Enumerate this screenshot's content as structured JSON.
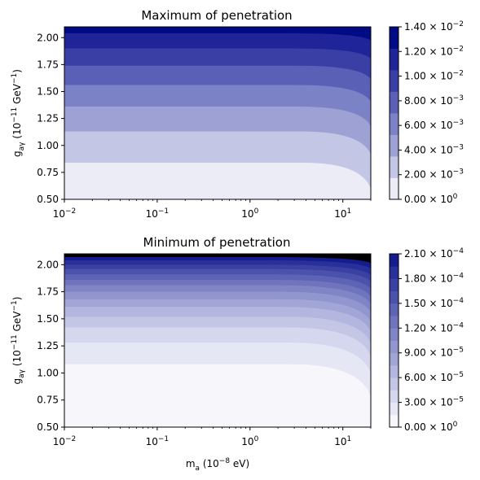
{
  "chart_data": [
    {
      "type": "contour",
      "title": "Maximum of penetration",
      "xlabel": "",
      "ylabel": "g_{aγ} (10^{−11} GeV^{−1})",
      "x_scale": "log",
      "xlim": [
        0.01,
        20
      ],
      "ylim": [
        0.5,
        2.1
      ],
      "x_ticks": [
        {
          "value": 0.01,
          "base": "10",
          "exp": "−2"
        },
        {
          "value": 0.1,
          "base": "10",
          "exp": "−1"
        },
        {
          "value": 1,
          "base": "10",
          "exp": "0"
        },
        {
          "value": 10,
          "base": "10",
          "exp": "1"
        }
      ],
      "y_ticks": [
        "0.50",
        "0.75",
        "1.00",
        "1.25",
        "1.50",
        "1.75",
        "2.00"
      ],
      "level_boundaries_y_at_low_mass": [
        0.84,
        1.13,
        1.36,
        1.56,
        1.74,
        1.9,
        2.04
      ],
      "levels": [
        0,
        0.002,
        0.004,
        0.006,
        0.008,
        0.01,
        0.012,
        0.014
      ],
      "colorbar_ticks": [
        {
          "mant": "0.00",
          "exp": "0"
        },
        {
          "mant": "2.00",
          "exp": "−3"
        },
        {
          "mant": "4.00",
          "exp": "−3"
        },
        {
          "mant": "6.00",
          "exp": "−3"
        },
        {
          "mant": "8.00",
          "exp": "−3"
        },
        {
          "mant": "1.00",
          "exp": "−2"
        },
        {
          "mant": "1.20",
          "exp": "−2"
        },
        {
          "mant": "1.40",
          "exp": "−2"
        }
      ],
      "fill_colors": [
        "#ececf6",
        "#c4c6e6",
        "#9da1d4",
        "#7c82c6",
        "#5a60b6",
        "#3a3fa5",
        "#1f2598",
        "#000b85"
      ]
    },
    {
      "type": "contour",
      "title": "Minimum of penetration",
      "xlabel": "m_a (10^{−8} eV)",
      "ylabel": "g_{aγ} (10^{−11} GeV^{−1})",
      "x_scale": "log",
      "xlim": [
        0.01,
        20
      ],
      "ylim": [
        0.5,
        2.1
      ],
      "x_ticks": [
        {
          "value": 0.01,
          "base": "10",
          "exp": "−2"
        },
        {
          "value": 0.1,
          "base": "10",
          "exp": "−1"
        },
        {
          "value": 1,
          "base": "10",
          "exp": "0"
        },
        {
          "value": 10,
          "base": "10",
          "exp": "1"
        }
      ],
      "y_ticks": [
        "0.50",
        "0.75",
        "1.00",
        "1.25",
        "1.50",
        "1.75",
        "2.00"
      ],
      "level_boundaries_y_at_low_mass": [
        1.08,
        1.28,
        1.42,
        1.52,
        1.61,
        1.68,
        1.75,
        1.81,
        1.86,
        1.91,
        1.96,
        2.0,
        2.04,
        2.07
      ],
      "levels": [
        0,
        1.5e-05,
        3e-05,
        4.5e-05,
        6e-05,
        7.5e-05,
        9e-05,
        0.000105,
        0.00012,
        0.000135,
        0.00015,
        0.000165,
        0.00018,
        0.000195,
        0.00021
      ],
      "colorbar_ticks": [
        {
          "mant": "0.00",
          "exp": "0"
        },
        {
          "mant": "3.00",
          "exp": "−5"
        },
        {
          "mant": "6.00",
          "exp": "−5"
        },
        {
          "mant": "9.00",
          "exp": "−5"
        },
        {
          "mant": "1.20",
          "exp": "−4"
        },
        {
          "mant": "1.50",
          "exp": "−4"
        },
        {
          "mant": "1.80",
          "exp": "−4"
        },
        {
          "mant": "2.10",
          "exp": "−4"
        }
      ],
      "fill_colors": [
        "#f6f6fb",
        "#e6e7f4",
        "#d5d7ee",
        "#c4c6e6",
        "#b3b6de",
        "#a2a6d6",
        "#9296ce",
        "#8085c6",
        "#6f74bd",
        "#5d63b5",
        "#4b52ab",
        "#3a41a3",
        "#29309a",
        "#141c90"
      ]
    }
  ]
}
